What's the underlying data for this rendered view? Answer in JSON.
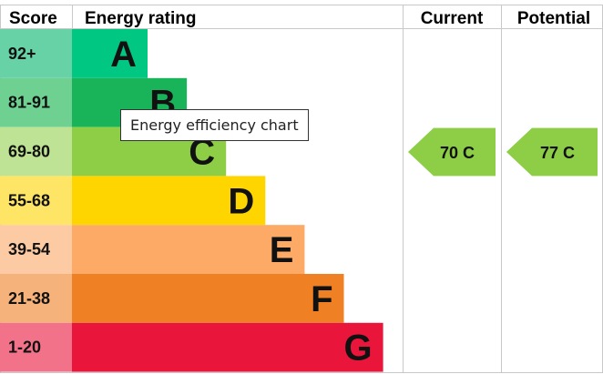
{
  "chart_data": {
    "type": "table",
    "headers": {
      "score": "Score",
      "rating": "Energy rating",
      "current": "Current",
      "potential": "Potential"
    },
    "bands": [
      {
        "letter": "A",
        "range": "92+",
        "color": "#00c781",
        "score_bg": "#66d2a6"
      },
      {
        "letter": "B",
        "range": "81-91",
        "color": "#19b459",
        "score_bg": "#6ed191"
      },
      {
        "letter": "C",
        "range": "69-80",
        "color": "#8dce46",
        "score_bg": "#bfe394"
      },
      {
        "letter": "D",
        "range": "55-68",
        "color": "#ffd500",
        "score_bg": "#ffe566"
      },
      {
        "letter": "E",
        "range": "39-54",
        "color": "#fcaa65",
        "score_bg": "#fdcba3"
      },
      {
        "letter": "F",
        "range": "21-38",
        "color": "#ef8023",
        "score_bg": "#f5b27b"
      },
      {
        "letter": "G",
        "range": "1-20",
        "color": "#e9153b",
        "score_bg": "#f27389"
      }
    ],
    "current": {
      "value": 70,
      "band": "C",
      "label": "70  C",
      "color": "#8dce46"
    },
    "potential": {
      "value": 77,
      "band": "C",
      "label": "77  C",
      "color": "#8dce46"
    }
  },
  "tooltip": {
    "text": "Energy efficiency chart"
  }
}
